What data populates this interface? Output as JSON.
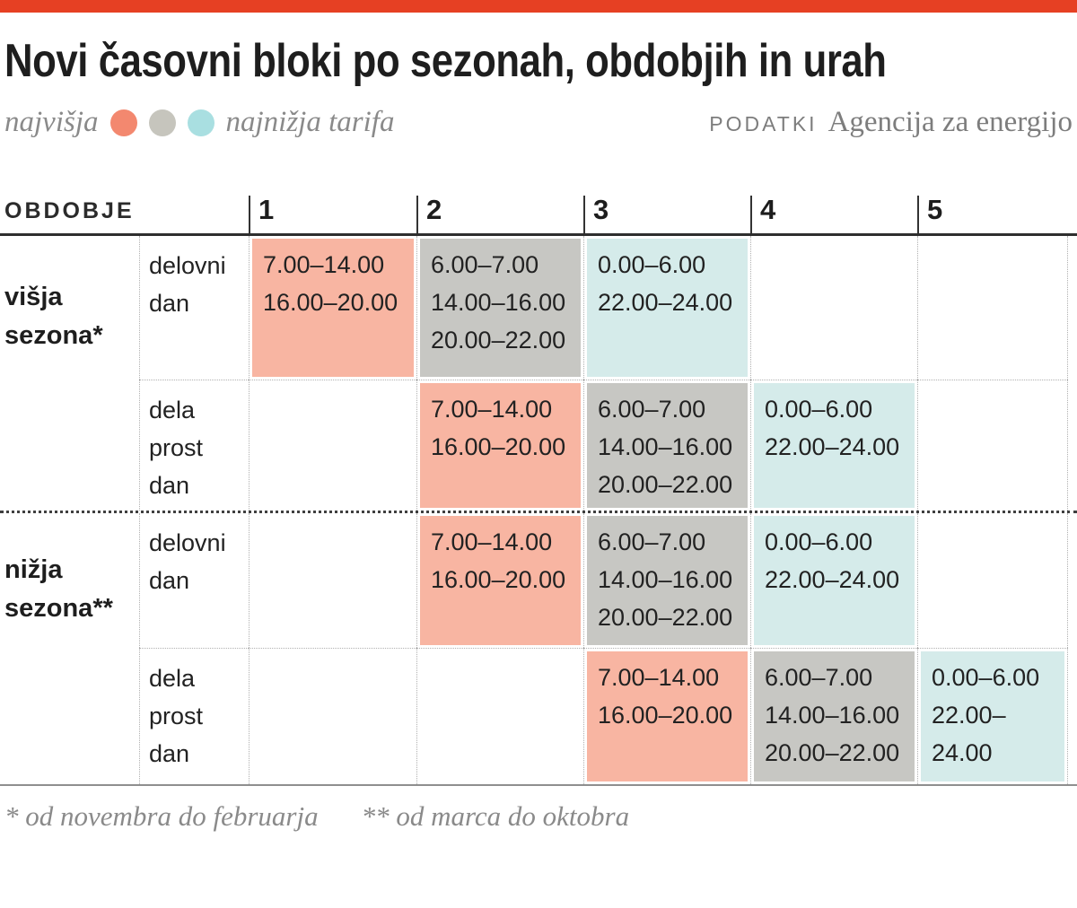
{
  "topbar": {
    "color": "#e64023"
  },
  "header": {
    "title": "Novi časovni bloki po sezonah, obdobjih in urah"
  },
  "legend": {
    "left_label": "najvišja",
    "right_label": "najnižja tarifa",
    "dot_colors": {
      "high": "#f3886f",
      "mid": "#c6c5bd",
      "low": "#a9dfe1"
    }
  },
  "source": {
    "label": "PODATKI",
    "value": "Agencija za energijo"
  },
  "colors": {
    "high": "#f8b5a2",
    "mid": "#c7c7c3",
    "low": "#d5ebea"
  },
  "table": {
    "corner_label": "OBDOBJE",
    "columns": [
      "1",
      "2",
      "3",
      "4",
      "5"
    ],
    "seasons": [
      {
        "label": "višja\nsezona*",
        "rows": [
          {
            "day": "delovni\ndan",
            "cells": {
              "c1": {
                "tariff": "najvišja",
                "times": "7.00–14.00\n16.00–20.00"
              },
              "c2": {
                "tariff": "srednja",
                "times": "6.00–7.00\n14.00–16.00\n20.00–22.00"
              },
              "c3": {
                "tariff": "najnižja",
                "times": "0.00–6.00\n22.00–24.00"
              }
            }
          },
          {
            "day": "dela\nprost\ndan",
            "cells": {
              "c2": {
                "tariff": "najvišja",
                "times": "7.00–14.00\n16.00–20.00"
              },
              "c3": {
                "tariff": "srednja",
                "times": "6.00–7.00\n14.00–16.00\n20.00–22.00"
              },
              "c4": {
                "tariff": "najnižja",
                "times": "0.00–6.00\n22.00–24.00"
              }
            }
          }
        ]
      },
      {
        "label": "nižja\nsezona**",
        "rows": [
          {
            "day": "delovni\ndan",
            "cells": {
              "c2": {
                "tariff": "najvišja",
                "times": "7.00–14.00\n16.00–20.00"
              },
              "c3": {
                "tariff": "srednja",
                "times": "6.00–7.00\n14.00–16.00\n20.00–22.00"
              },
              "c4": {
                "tariff": "najnižja",
                "times": "0.00–6.00\n22.00–24.00"
              }
            }
          },
          {
            "day": "dela\nprost\ndan",
            "cells": {
              "c3": {
                "tariff": "najvišja",
                "times": "7.00–14.00\n16.00–20.00"
              },
              "c4": {
                "tariff": "srednja",
                "times": "6.00–7.00\n14.00–16.00\n20.00–22.00"
              },
              "c5": {
                "tariff": "najnižja",
                "times": "0.00–6.00\n22.00–24.00"
              }
            }
          }
        ]
      }
    ]
  },
  "footnotes": {
    "first": "* od novembra do februarja",
    "second": "** od marca do oktobra"
  },
  "chart_data": {
    "type": "table",
    "title": "Novi časovni bloki po sezonah, obdobjih in urah",
    "legend_note": "najvišja (salmon) → najnižja (teal) tarifa",
    "source": "PODATKI Agencija za energijo",
    "columns": [
      "1",
      "2",
      "3",
      "4",
      "5"
    ],
    "rows": [
      {
        "season": "višja sezona*",
        "day": "delovni dan",
        "blocks": {
          "1": [
            "7.00–14.00",
            "16.00–20.00"
          ],
          "2": [
            "6.00–7.00",
            "14.00–16.00",
            "20.00–22.00"
          ],
          "3": [
            "0.00–6.00",
            "22.00–24.00"
          ]
        }
      },
      {
        "season": "višja sezona*",
        "day": "dela prost dan",
        "blocks": {
          "2": [
            "7.00–14.00",
            "16.00–20.00"
          ],
          "3": [
            "6.00–7.00",
            "14.00–16.00",
            "20.00–22.00"
          ],
          "4": [
            "0.00–6.00",
            "22.00–24.00"
          ]
        }
      },
      {
        "season": "nižja sezona**",
        "day": "delovni dan",
        "blocks": {
          "2": [
            "7.00–14.00",
            "16.00–20.00"
          ],
          "3": [
            "6.00–7.00",
            "14.00–16.00",
            "20.00–22.00"
          ],
          "4": [
            "0.00–6.00",
            "22.00–24.00"
          ]
        }
      },
      {
        "season": "nižja sezona**",
        "day": "dela prost dan",
        "blocks": {
          "3": [
            "7.00–14.00",
            "16.00–20.00"
          ],
          "4": [
            "6.00–7.00",
            "14.00–16.00",
            "20.00–22.00"
          ],
          "5": [
            "0.00–6.00",
            "22.00–24.00"
          ]
        }
      }
    ],
    "footnotes": [
      "* od novembra do februarja",
      "** od marca do oktobra"
    ]
  }
}
